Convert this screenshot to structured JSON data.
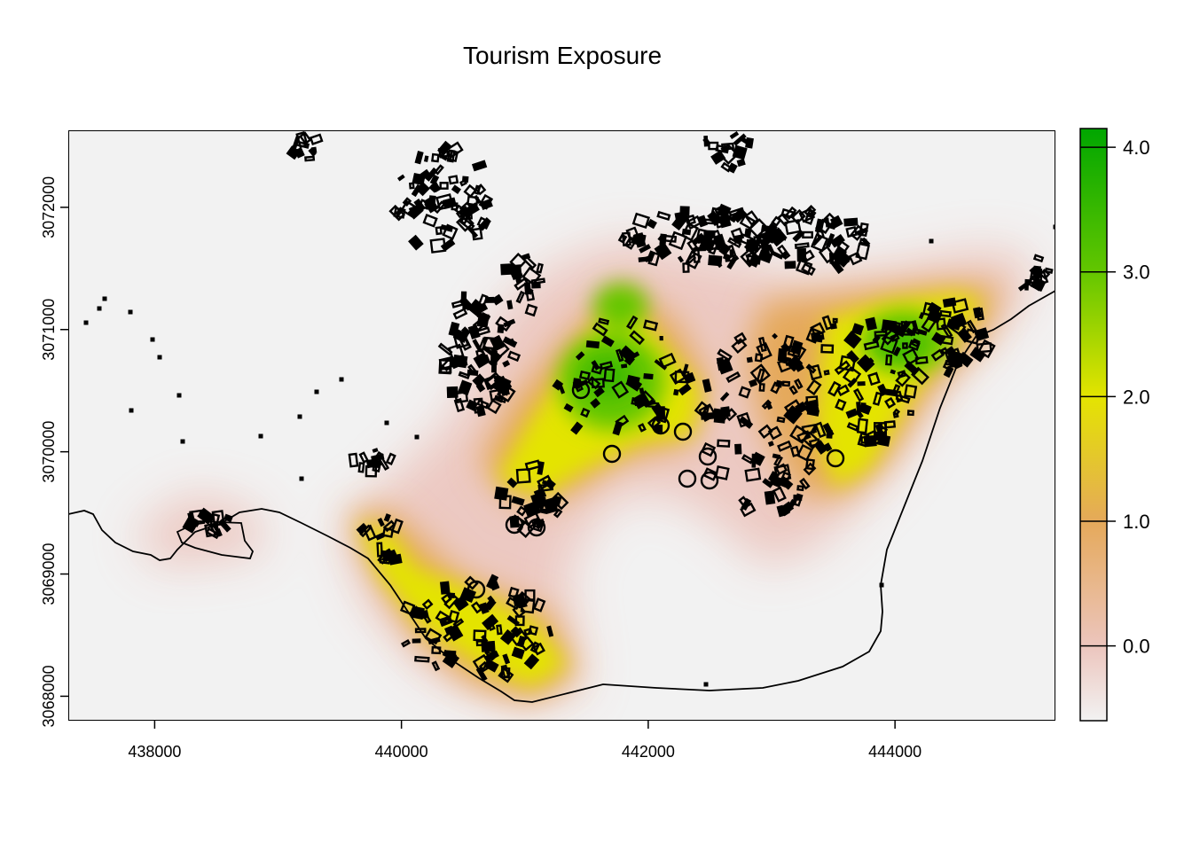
{
  "title": "Tourism Exposure",
  "x_ticks": [
    {
      "value": 438000,
      "label": "438000"
    },
    {
      "value": 440000,
      "label": "440000"
    },
    {
      "value": 442000,
      "label": "442000"
    },
    {
      "value": 444000,
      "label": "444000"
    }
  ],
  "y_ticks": [
    {
      "value": 3068000,
      "label": "3068000"
    },
    {
      "value": 3069000,
      "label": "3069000"
    },
    {
      "value": 3070000,
      "label": "3070000"
    },
    {
      "value": 3071000,
      "label": "3071000"
    },
    {
      "value": 3072000,
      "label": "3072000"
    }
  ],
  "x_range": [
    437300,
    445300
  ],
  "y_range": [
    3067800,
    3072630
  ],
  "legend": {
    "range": [
      -0.6,
      4.15
    ],
    "ticks": [
      {
        "value": 0.0,
        "label": "0.0"
      },
      {
        "value": 1.0,
        "label": "1.0"
      },
      {
        "value": 2.0,
        "label": "2.0"
      },
      {
        "value": 3.0,
        "label": "3.0"
      },
      {
        "value": 4.0,
        "label": "4.0"
      }
    ],
    "color_stops": [
      {
        "value": -0.6,
        "color": "#f2f2f2"
      },
      {
        "value": 0.0,
        "color": "#ecc5bd"
      },
      {
        "value": 1.0,
        "color": "#e5a95a"
      },
      {
        "value": 2.0,
        "color": "#e4e400"
      },
      {
        "value": 3.0,
        "color": "#63c600"
      },
      {
        "value": 4.15,
        "color": "#00a600"
      }
    ]
  },
  "colors": {
    "background": "#f2f2f2",
    "low": "#ecc5bd",
    "mid": "#e5a95a",
    "high": "#e4e400",
    "higher": "#63c600",
    "max": "#00a600"
  }
}
